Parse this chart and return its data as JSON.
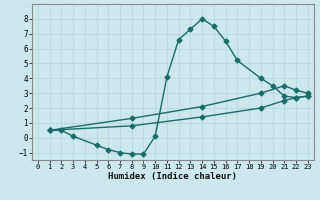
{
  "title": "",
  "xlabel": "Humidex (Indice chaleur)",
  "xlim": [
    -0.5,
    23.5
  ],
  "ylim": [
    -1.5,
    9.0
  ],
  "xticks": [
    0,
    1,
    2,
    3,
    4,
    5,
    6,
    7,
    8,
    9,
    10,
    11,
    12,
    13,
    14,
    15,
    16,
    17,
    18,
    19,
    20,
    21,
    22,
    23
  ],
  "yticks": [
    -1,
    0,
    1,
    2,
    3,
    4,
    5,
    6,
    7,
    8
  ],
  "bg_color": "#cde8ec",
  "grid_color": "#b8d8de",
  "line_color": "#1a6b6b",
  "line1_x": [
    1,
    2,
    3,
    5,
    6,
    7,
    8,
    9,
    10,
    11,
    12,
    13,
    14,
    15,
    16,
    17,
    19,
    20,
    21,
    22,
    23
  ],
  "line1_y": [
    0.5,
    0.5,
    0.1,
    -0.5,
    -0.8,
    -1.0,
    -1.1,
    -1.1,
    0.1,
    4.1,
    6.6,
    7.3,
    8.0,
    7.5,
    6.5,
    5.2,
    4.0,
    3.5,
    2.8,
    2.7,
    2.8
  ],
  "line2_x": [
    1,
    8,
    14,
    19,
    21,
    22,
    23
  ],
  "line2_y": [
    0.5,
    1.3,
    2.1,
    3.0,
    3.5,
    3.2,
    3.0
  ],
  "line3_x": [
    1,
    8,
    14,
    19,
    21,
    22,
    23
  ],
  "line3_y": [
    0.5,
    0.8,
    1.4,
    2.0,
    2.5,
    2.7,
    2.8
  ],
  "marker": "D",
  "markersize": 2.5,
  "linewidth": 1.0
}
